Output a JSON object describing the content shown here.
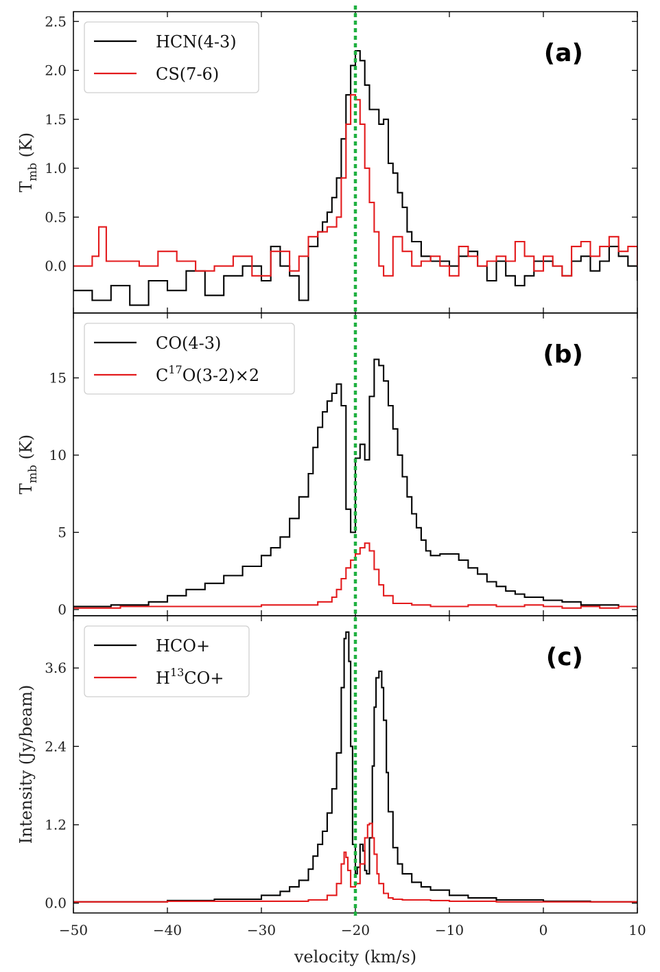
{
  "chart_data": {
    "type": "line",
    "style": "step",
    "shared_x": {
      "label": "velocity (km/s)",
      "lim": [
        -50,
        10
      ],
      "ticks": [
        -50,
        -40,
        -30,
        -20,
        -10,
        0,
        10
      ],
      "tick_labels": [
        "−50",
        "−40",
        "−30",
        "−20",
        "−10",
        "0",
        "10"
      ]
    },
    "reference_line": {
      "x": -20,
      "color": "#1fb040",
      "style": "dotted"
    },
    "colors": {
      "black_series": "#000000",
      "red_series": "#e31a1c"
    },
    "panels": [
      {
        "tag": "(a)",
        "ylabel_main": "T",
        "ylabel_sub": "mb",
        "ylabel_tail": " (K)",
        "ylim": [
          -0.48,
          2.6
        ],
        "yticks": [
          0.0,
          0.5,
          1.0,
          1.5,
          2.0,
          2.5
        ],
        "ytick_labels": [
          "0.0",
          "0.5",
          "1.0",
          "1.5",
          "2.0",
          "2.5"
        ],
        "legend": [
          {
            "label": "HCN(4-3)",
            "color": "#000000"
          },
          {
            "label": "CS(7-6)",
            "color": "#e31a1c"
          }
        ],
        "series": [
          {
            "name": "HCN(4-3)",
            "color": "#000000",
            "x": [
              -50,
              -48,
              -46,
              -44,
              -42,
              -40,
              -38,
              -36,
              -34,
              -32,
              -30,
              -29,
              -28,
              -27,
              -26,
              -25,
              -24,
              -23.5,
              -23,
              -22.5,
              -22,
              -21.5,
              -21,
              -20.5,
              -20,
              -19.5,
              -19,
              -18.5,
              -18,
              -17.5,
              -17,
              -16.5,
              -16,
              -15.5,
              -15,
              -14.5,
              -14,
              -13,
              -12,
              -11,
              -10,
              -9,
              -8,
              -7,
              -6,
              -5,
              -4,
              -3,
              -2,
              -1,
              0,
              1,
              2,
              3,
              4,
              5,
              6,
              7,
              8,
              9,
              10
            ],
            "y": [
              -0.25,
              -0.35,
              -0.2,
              -0.4,
              -0.15,
              -0.25,
              -0.05,
              -0.3,
              -0.1,
              0.0,
              -0.15,
              0.2,
              0.0,
              -0.1,
              -0.35,
              0.2,
              0.35,
              0.45,
              0.55,
              0.7,
              0.9,
              1.3,
              1.75,
              2.05,
              2.2,
              2.1,
              1.85,
              1.6,
              1.6,
              1.45,
              1.5,
              1.05,
              0.95,
              0.75,
              0.6,
              0.35,
              0.25,
              0.1,
              0.05,
              0.05,
              0.0,
              0.1,
              0.15,
              0.0,
              -0.15,
              0.05,
              -0.1,
              -0.2,
              -0.1,
              0.05,
              0.05,
              0.0,
              -0.1,
              0.05,
              0.1,
              -0.05,
              0.05,
              0.2,
              0.1,
              0.0,
              -0.15
            ]
          },
          {
            "name": "CS(7-6)",
            "color": "#e31a1c",
            "x": [
              -50,
              -48,
              -47.3,
              -46.5,
              -45,
              -43,
              -41,
              -39,
              -37,
              -35,
              -33,
              -31,
              -29,
              -27,
              -26,
              -25,
              -24,
              -23,
              -22,
              -21.5,
              -21,
              -20.5,
              -20,
              -19.5,
              -19,
              -18.5,
              -18,
              -17.5,
              -17,
              -16,
              -15,
              -14,
              -13,
              -12,
              -11,
              -10,
              -9,
              -8,
              -7,
              -6,
              -5,
              -4,
              -3,
              -2,
              -1,
              0,
              1,
              2,
              3,
              4,
              5,
              6,
              7,
              8,
              9,
              10
            ],
            "y": [
              0.0,
              0.1,
              0.4,
              0.05,
              0.05,
              0.0,
              0.15,
              0.05,
              -0.05,
              0.0,
              0.1,
              -0.1,
              0.15,
              -0.05,
              0.1,
              0.3,
              0.35,
              0.4,
              0.5,
              0.9,
              1.45,
              1.75,
              1.7,
              1.45,
              1.0,
              0.65,
              0.35,
              0.0,
              -0.1,
              0.3,
              0.15,
              0.0,
              0.05,
              0.1,
              0.0,
              -0.1,
              0.2,
              0.1,
              0.0,
              0.05,
              0.1,
              0.05,
              0.25,
              0.1,
              -0.05,
              0.1,
              0.0,
              -0.1,
              0.2,
              0.25,
              0.1,
              0.2,
              0.3,
              0.15,
              0.2,
              0.0
            ]
          }
        ]
      },
      {
        "tag": "(b)",
        "ylabel_main": "T",
        "ylabel_sub": "mb",
        "ylabel_tail": " (K)",
        "ylim": [
          -0.4,
          19.2
        ],
        "yticks": [
          0,
          5,
          10,
          15
        ],
        "ytick_labels": [
          "0",
          "5",
          "10",
          "15"
        ],
        "legend": [
          {
            "label": "CO(4-3)",
            "color": "#000000"
          },
          {
            "label": "C",
            "sup": "17",
            "tail": "O(3-2)×2",
            "color": "#e31a1c"
          }
        ],
        "series": [
          {
            "name": "CO(4-3)",
            "color": "#000000",
            "x": [
              -50,
              -46,
              -42,
              -40,
              -38,
              -36,
              -34,
              -32,
              -30,
              -29,
              -28,
              -27,
              -26,
              -25,
              -24.5,
              -24,
              -23.5,
              -23,
              -22.5,
              -22,
              -21.5,
              -21,
              -20.5,
              -20,
              -19.5,
              -19,
              -18.5,
              -18,
              -17.5,
              -17,
              -16.5,
              -16,
              -15.5,
              -15,
              -14.5,
              -14,
              -13.5,
              -13,
              -12.5,
              -12,
              -11,
              -10,
              -9,
              -8,
              -7,
              -6,
              -5,
              -4,
              -3,
              -2,
              0,
              2,
              4,
              6,
              8,
              10
            ],
            "y": [
              0.2,
              0.3,
              0.5,
              0.9,
              1.3,
              1.7,
              2.2,
              2.8,
              3.5,
              4.0,
              4.7,
              5.9,
              7.3,
              8.8,
              10.5,
              11.8,
              12.8,
              13.5,
              14.0,
              14.6,
              13.2,
              6.5,
              5.0,
              9.8,
              10.7,
              9.7,
              13.8,
              16.2,
              15.8,
              14.8,
              13.2,
              11.7,
              10.0,
              8.6,
              7.3,
              6.2,
              5.3,
              4.5,
              3.8,
              3.5,
              3.6,
              3.6,
              3.2,
              2.7,
              2.3,
              1.8,
              1.5,
              1.2,
              1.0,
              0.8,
              0.6,
              0.5,
              0.3,
              0.3,
              0.2,
              0.1
            ]
          },
          {
            "name": "C17O(3-2)x2",
            "color": "#e31a1c",
            "x": [
              -50,
              -45,
              -40,
              -35,
              -30,
              -26,
              -24,
              -22.5,
              -22,
              -21.5,
              -21,
              -20.5,
              -20,
              -19.5,
              -19,
              -18.5,
              -18,
              -17.5,
              -17,
              -16,
              -14,
              -12,
              -10,
              -8,
              -5,
              -2,
              0,
              2,
              4,
              6,
              8,
              10
            ],
            "y": [
              0.1,
              0.2,
              0.2,
              0.2,
              0.3,
              0.3,
              0.5,
              0.8,
              1.3,
              2.0,
              2.7,
              3.2,
              3.6,
              4.0,
              4.3,
              3.8,
              2.6,
              1.6,
              0.9,
              0.4,
              0.3,
              0.2,
              0.2,
              0.3,
              0.2,
              0.3,
              0.2,
              0.1,
              0.2,
              0.1,
              0.2,
              0.2
            ]
          }
        ]
      },
      {
        "tag": "(c)",
        "ylabel_main": "Intensity (Jy/beam)",
        "ylabel_sub": "",
        "ylabel_tail": "",
        "ylim": [
          -0.15,
          4.4
        ],
        "yticks": [
          0.0,
          1.2,
          2.4,
          3.6
        ],
        "ytick_labels": [
          "0.0",
          "1.2",
          "2.4",
          "3.6"
        ],
        "legend": [
          {
            "label": "HCO+",
            "color": "#000000"
          },
          {
            "label": "H",
            "sup": "13",
            "tail": "CO+",
            "color": "#e31a1c"
          }
        ],
        "series": [
          {
            "name": "HCO+",
            "color": "#000000",
            "x": [
              -50,
              -45,
              -40,
              -35,
              -30,
              -28,
              -27,
              -26,
              -25,
              -24.5,
              -24,
              -23.5,
              -23,
              -22.5,
              -22,
              -21.5,
              -21.2,
              -21,
              -20.7,
              -20.5,
              -20.3,
              -20,
              -19.8,
              -19.5,
              -19.2,
              -19,
              -18.8,
              -18.5,
              -18.2,
              -18,
              -17.8,
              -17.5,
              -17.2,
              -17,
              -16.7,
              -16.5,
              -16,
              -15.5,
              -15,
              -14,
              -13,
              -12,
              -10,
              -8,
              -5,
              0,
              5,
              10
            ],
            "y": [
              0.02,
              0.02,
              0.04,
              0.06,
              0.12,
              0.18,
              0.25,
              0.35,
              0.52,
              0.72,
              0.9,
              1.1,
              1.38,
              1.75,
              2.3,
              3.3,
              4.05,
              4.15,
              3.7,
              2.4,
              0.9,
              0.45,
              0.55,
              0.9,
              0.8,
              0.5,
              0.45,
              1.0,
              2.1,
              3.0,
              3.45,
              3.55,
              3.3,
              2.8,
              2.0,
              1.4,
              0.85,
              0.6,
              0.45,
              0.32,
              0.25,
              0.2,
              0.12,
              0.08,
              0.05,
              0.03,
              0.02,
              0.02
            ]
          },
          {
            "name": "H13CO+",
            "color": "#e31a1c",
            "x": [
              -50,
              -40,
              -30,
              -25,
              -23,
              -22,
              -21.5,
              -21.2,
              -21,
              -20.8,
              -20.5,
              -20,
              -19.5,
              -19,
              -18.7,
              -18.5,
              -18.2,
              -18,
              -17.7,
              -17.5,
              -17,
              -16.5,
              -16,
              -15,
              -12,
              -10,
              -5,
              0,
              5,
              10
            ],
            "y": [
              0.02,
              0.03,
              0.03,
              0.05,
              0.12,
              0.3,
              0.6,
              0.78,
              0.7,
              0.5,
              0.25,
              0.3,
              0.6,
              1.0,
              1.2,
              1.22,
              1.0,
              0.75,
              0.45,
              0.3,
              0.15,
              0.08,
              0.06,
              0.05,
              0.04,
              0.03,
              0.02,
              0.02,
              0.02,
              0.02
            ]
          }
        ]
      }
    ]
  }
}
